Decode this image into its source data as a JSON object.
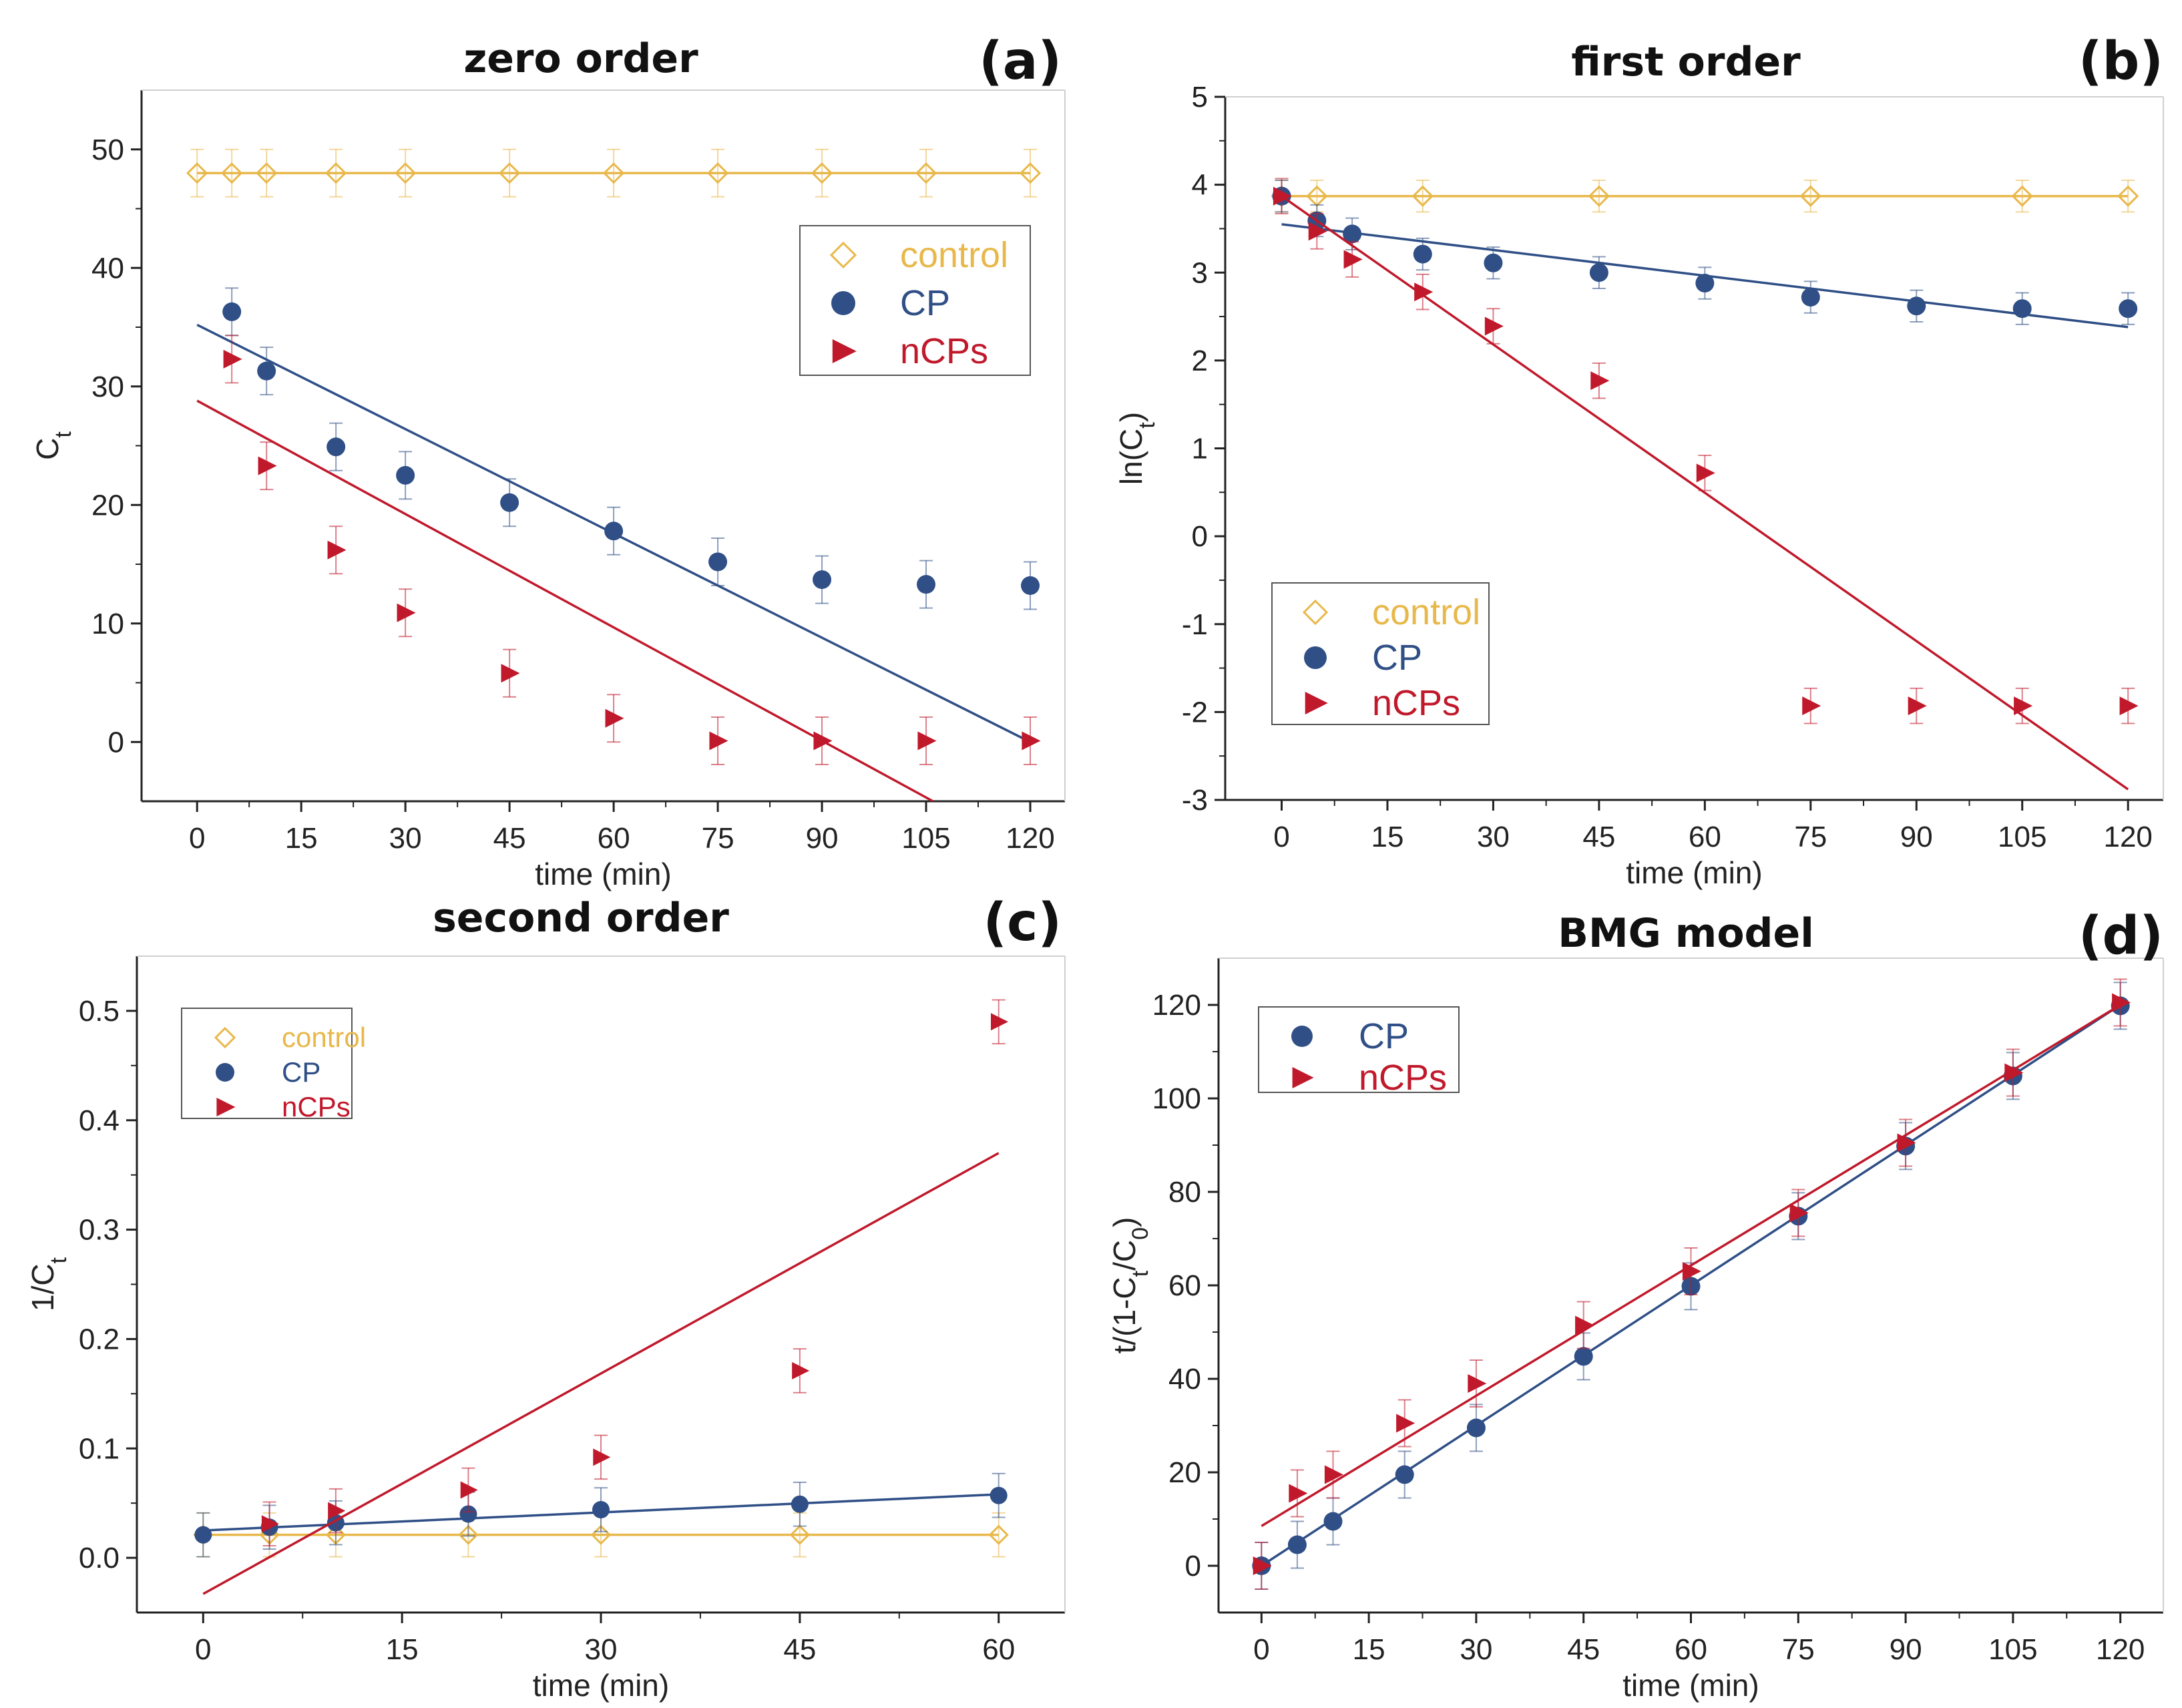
{
  "colors": {
    "control": "#E8B84A",
    "CP": "#2F4F86",
    "nCPs": "#C0192B",
    "axis": "#222222"
  },
  "chart_data": [
    {
      "type": "scatter",
      "letter": "(a)",
      "title": "zero order",
      "xlabel": "time (min)",
      "ylabel": "C",
      "ylabel_sub": "t",
      "xlim": [
        -8,
        125
      ],
      "ylim": [
        -5,
        55
      ],
      "xticks": [
        0,
        15,
        30,
        45,
        60,
        75,
        90,
        105,
        120
      ],
      "yticks": [
        0,
        10,
        20,
        30,
        40,
        50
      ],
      "xtick_labels": [
        "0",
        "15",
        "30",
        "45",
        "60",
        "75",
        "90",
        "105",
        "120"
      ],
      "ytick_labels": [
        "0",
        "10",
        "20",
        "30",
        "40",
        "50"
      ],
      "legend": [
        "control",
        "CP",
        "nCPs"
      ],
      "series": [
        {
          "name": "control",
          "marker": "diamond",
          "x": [
            0,
            5,
            10,
            20,
            30,
            45,
            60,
            75,
            90,
            105,
            120
          ],
          "y": [
            48,
            48,
            48,
            48,
            48,
            48,
            48,
            48,
            48,
            48,
            48
          ],
          "err": 2,
          "fit": [
            [
              0,
              48
            ],
            [
              120,
              48
            ]
          ]
        },
        {
          "name": "CP",
          "marker": "circle",
          "x": [
            5,
            10,
            20,
            30,
            45,
            60,
            75,
            90,
            105,
            120
          ],
          "y": [
            36.3,
            31.3,
            24.9,
            22.5,
            20.2,
            17.8,
            15.2,
            13.7,
            13.3,
            13.2
          ],
          "err": 2,
          "fit": [
            [
              0,
              35.2
            ],
            [
              120,
              0
            ]
          ]
        },
        {
          "name": "nCPs",
          "marker": "triangle",
          "x": [
            5,
            10,
            20,
            30,
            45,
            60,
            75,
            90,
            105,
            120
          ],
          "y": [
            32.3,
            23.3,
            16.2,
            10.9,
            5.8,
            2.0,
            0.1,
            0.1,
            0.1,
            0.1
          ],
          "err": 2,
          "fit": [
            [
              0,
              28.8
            ],
            [
              106,
              -5
            ]
          ]
        }
      ]
    },
    {
      "type": "scatter",
      "letter": "(b)",
      "title": "first order",
      "xlabel": "time (min)",
      "ylabel": "ln(C",
      "ylabel_sub": "t",
      "ylabel_end": ")",
      "xlim": [
        -8,
        125
      ],
      "ylim": [
        -3,
        5
      ],
      "xticks": [
        0,
        15,
        30,
        45,
        60,
        75,
        90,
        105,
        120
      ],
      "yticks": [
        -3,
        -2,
        -1,
        0,
        1,
        2,
        3,
        4,
        5
      ],
      "xtick_labels": [
        "0",
        "15",
        "30",
        "45",
        "60",
        "75",
        "90",
        "105",
        "120"
      ],
      "ytick_labels": [
        "-3",
        "-2",
        "-1",
        "0",
        "1",
        "2",
        "3",
        "4",
        "5"
      ],
      "legend": [
        "control",
        "CP",
        "nCPs"
      ],
      "series": [
        {
          "name": "control",
          "marker": "diamond",
          "x": [
            0,
            5,
            20,
            45,
            75,
            105,
            120
          ],
          "y": [
            3.87,
            3.87,
            3.87,
            3.87,
            3.87,
            3.87,
            3.87
          ],
          "err": 0.18,
          "fit": [
            [
              0,
              3.87
            ],
            [
              120,
              3.87
            ]
          ]
        },
        {
          "name": "CP",
          "marker": "circle",
          "x": [
            0,
            5,
            10,
            20,
            30,
            45,
            60,
            75,
            90,
            105,
            120
          ],
          "y": [
            3.87,
            3.59,
            3.44,
            3.21,
            3.11,
            3.0,
            2.88,
            2.72,
            2.62,
            2.59,
            2.59
          ],
          "err": 0.18,
          "fit": [
            [
              0,
              3.55
            ],
            [
              120,
              2.38
            ]
          ]
        },
        {
          "name": "nCPs",
          "marker": "triangle",
          "x": [
            0,
            5,
            10,
            20,
            30,
            45,
            60,
            75,
            90,
            105,
            120
          ],
          "y": [
            3.87,
            3.47,
            3.15,
            2.78,
            2.39,
            1.77,
            0.72,
            -1.93,
            -1.93,
            -1.93,
            -1.93
          ],
          "err": 0.2,
          "fit": [
            [
              0,
              3.87
            ],
            [
              120,
              -2.88
            ]
          ]
        }
      ]
    },
    {
      "type": "scatter",
      "letter": "(c)",
      "title": "second order",
      "xlabel": "time (min)",
      "ylabel": "1/C",
      "ylabel_sub": "t",
      "xlim": [
        -5,
        65
      ],
      "ylim": [
        -0.05,
        0.55
      ],
      "xticks": [
        0,
        15,
        30,
        45,
        60
      ],
      "yticks": [
        0,
        0.1,
        0.2,
        0.3,
        0.4,
        0.5
      ],
      "xtick_labels": [
        "0",
        "15",
        "30",
        "45",
        "60"
      ],
      "ytick_labels": [
        "0.0",
        "0.1",
        "0.2",
        "0.3",
        "0.4",
        "0.5"
      ],
      "legend": [
        "control",
        "CP",
        "nCPs"
      ],
      "series": [
        {
          "name": "control",
          "marker": "diamond",
          "x": [
            0,
            5,
            10,
            20,
            30,
            45,
            60
          ],
          "y": [
            0.021,
            0.021,
            0.021,
            0.021,
            0.021,
            0.021,
            0.021
          ],
          "err": 0.02,
          "fit": [
            [
              0,
              0.021
            ],
            [
              60,
              0.021
            ]
          ]
        },
        {
          "name": "CP",
          "marker": "circle",
          "x": [
            0,
            5,
            10,
            20,
            30,
            45,
            60
          ],
          "y": [
            0.021,
            0.028,
            0.032,
            0.04,
            0.044,
            0.049,
            0.057
          ],
          "err": 0.02,
          "fit": [
            [
              0,
              0.025
            ],
            [
              60,
              0.058
            ]
          ]
        },
        {
          "name": "nCPs",
          "marker": "triangle",
          "x": [
            5,
            10,
            20,
            30,
            45,
            60
          ],
          "y": [
            0.031,
            0.043,
            0.062,
            0.092,
            0.171,
            0.49
          ],
          "err": 0.02,
          "fit": [
            [
              0,
              -0.033
            ],
            [
              60,
              0.37
            ]
          ]
        }
      ]
    },
    {
      "type": "scatter",
      "letter": "(d)",
      "title": "BMG model",
      "xlabel": "time (min)",
      "ylabel": "t/(1-C",
      "ylabel_sub": "t",
      "ylabel_mid": "/C",
      "ylabel_sub2": "0",
      "ylabel_end": ")",
      "xlim": [
        -6,
        126
      ],
      "ylim": [
        -10,
        130
      ],
      "xticks": [
        0,
        15,
        30,
        45,
        60,
        75,
        90,
        105,
        120
      ],
      "yticks": [
        0,
        20,
        40,
        60,
        80,
        100,
        120
      ],
      "xtick_labels": [
        "0",
        "15",
        "30",
        "45",
        "60",
        "75",
        "90",
        "105",
        "120"
      ],
      "ytick_labels": [
        "0",
        "20",
        "40",
        "60",
        "80",
        "100",
        "120"
      ],
      "legend": [
        "CP",
        "nCPs"
      ],
      "series": [
        {
          "name": "CP",
          "marker": "circle",
          "x": [
            0,
            5,
            10,
            20,
            30,
            45,
            60,
            75,
            90,
            105,
            120
          ],
          "y": [
            0,
            4.5,
            9.5,
            19.5,
            29.5,
            44.8,
            59.8,
            74.8,
            89.8,
            104.8,
            119.8
          ],
          "err": 5,
          "fit": [
            [
              0,
              0
            ],
            [
              120,
              120
            ]
          ]
        },
        {
          "name": "nCPs",
          "marker": "triangle",
          "x": [
            0,
            5,
            10,
            20,
            30,
            45,
            60,
            75,
            90,
            105,
            120
          ],
          "y": [
            0,
            15.5,
            19.5,
            30.5,
            39,
            51.5,
            63,
            75.5,
            90.5,
            105.5,
            120.5
          ],
          "err": 5,
          "fit": [
            [
              0,
              8.5
            ],
            [
              120,
              120
            ]
          ]
        }
      ]
    }
  ]
}
